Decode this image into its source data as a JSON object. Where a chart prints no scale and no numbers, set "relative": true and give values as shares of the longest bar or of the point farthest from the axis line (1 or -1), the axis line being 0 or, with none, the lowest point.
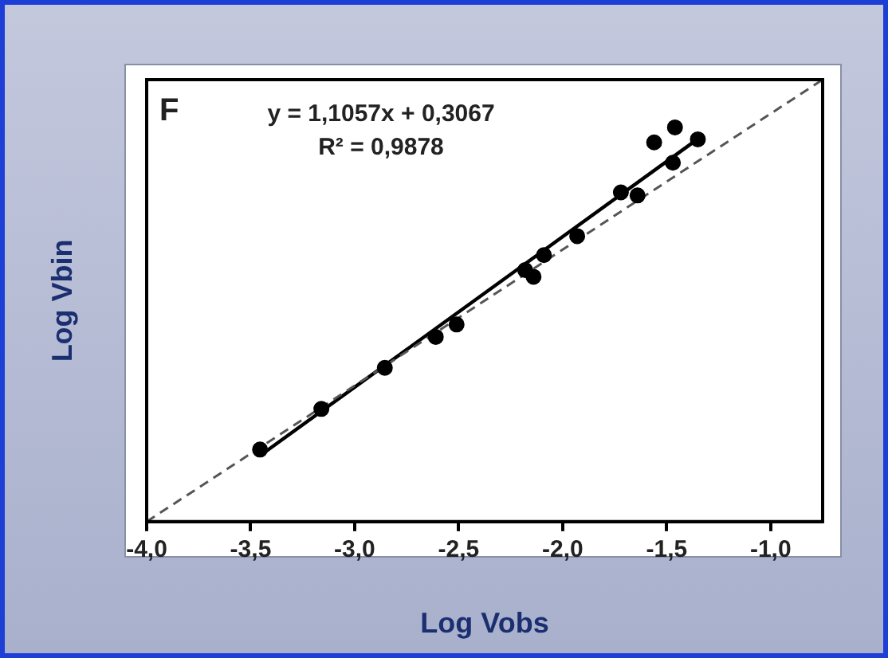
{
  "chart_data": {
    "type": "scatter",
    "xlabel": "Log Vobs",
    "ylabel": "Log Vbin",
    "annotations": [
      "F",
      "y = 1,1057x + 0,3067",
      "R² = 0,9878"
    ],
    "xlim": [
      -4,
      -0.75
    ],
    "relative": true,
    "xticks": [
      {
        "value": -4,
        "label": "-4,0"
      },
      {
        "value": -3.5,
        "label": "-3,5"
      },
      {
        "value": -3,
        "label": "-3,0"
      },
      {
        "value": -2.5,
        "label": "-2,5"
      },
      {
        "value": -2,
        "label": "-2,0"
      },
      {
        "value": -1.5,
        "label": "-1,5"
      },
      {
        "value": -1,
        "label": "-1,0"
      }
    ],
    "tick_labels": "x",
    "grid": false,
    "legend": false,
    "marker": "circle",
    "series": [
      {
        "type": "line",
        "color": "#555555",
        "line_style": "dashed",
        "marker": "none",
        "x": [
          -4,
          -0.75
        ],
        "values": [
          0,
          1
        ]
      },
      {
        "type": "line",
        "color": "#000000",
        "line_style": "solid",
        "marker": "none",
        "x": [
          -3.45,
          -1.35
        ],
        "values": [
          0.151,
          0.866
        ]
      },
      {
        "color": "#000000",
        "x": [
          -3.455,
          -3.16,
          -2.855,
          -2.61,
          -2.51,
          -2.18,
          -2.14,
          -2.09,
          -1.93,
          -1.72,
          -1.64,
          -1.56,
          -1.46,
          -1.47,
          -1.35
        ],
        "values": [
          0.163,
          0.255,
          0.348,
          0.418,
          0.446,
          0.569,
          0.554,
          0.603,
          0.646,
          0.745,
          0.738,
          0.858,
          0.892,
          0.812,
          0.865
        ]
      }
    ]
  }
}
